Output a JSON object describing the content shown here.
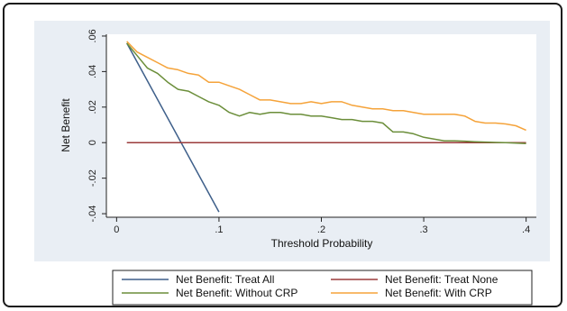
{
  "colors": {
    "outer_bg": "#ffffff",
    "plot_region_bg": "#e9eef4",
    "plot_bg": "#ffffff",
    "treat_all": "#3e5f8a",
    "treat_none": "#9b3b3b",
    "without_crp": "#6b8e3a",
    "with_crp": "#f5a33a"
  },
  "chart_data": {
    "type": "line",
    "title": "",
    "xlabel": "Threshold Probability",
    "ylabel": "Net Benefit",
    "xlim": [
      -0.01,
      0.41
    ],
    "ylim": [
      -0.042,
      0.061
    ],
    "x_ticks": [
      0,
      0.1,
      0.2,
      0.3,
      0.4
    ],
    "x_tick_labels": [
      "0",
      ".1",
      ".2",
      ".3",
      ".4"
    ],
    "y_ticks": [
      -0.04,
      -0.02,
      0,
      0.02,
      0.04,
      0.06
    ],
    "y_tick_labels": [
      "-.04",
      "-.02",
      "0",
      ".02",
      ".04",
      ".06"
    ],
    "grid": false,
    "legend_position": "bottom",
    "series": [
      {
        "name": "Net Benefit: Treat All",
        "color_key": "treat_all",
        "x": [
          0.01,
          0.1
        ],
        "y": [
          0.056,
          -0.039
        ]
      },
      {
        "name": "Net Benefit: Treat None",
        "color_key": "treat_none",
        "x": [
          0.01,
          0.4
        ],
        "y": [
          0,
          0
        ]
      },
      {
        "name": "Net Benefit: Without CRP",
        "color_key": "without_crp",
        "x": [
          0.01,
          0.02,
          0.03,
          0.04,
          0.05,
          0.06,
          0.07,
          0.08,
          0.09,
          0.1,
          0.11,
          0.12,
          0.13,
          0.14,
          0.15,
          0.16,
          0.17,
          0.18,
          0.19,
          0.2,
          0.21,
          0.22,
          0.23,
          0.24,
          0.25,
          0.26,
          0.27,
          0.28,
          0.29,
          0.3,
          0.31,
          0.32,
          0.33,
          0.34,
          0.35,
          0.36,
          0.37,
          0.38,
          0.39,
          0.4
        ],
        "y": [
          0.056,
          0.049,
          0.042,
          0.039,
          0.034,
          0.03,
          0.029,
          0.026,
          0.023,
          0.021,
          0.017,
          0.015,
          0.017,
          0.016,
          0.017,
          0.017,
          0.016,
          0.016,
          0.015,
          0.015,
          0.014,
          0.013,
          0.013,
          0.012,
          0.012,
          0.011,
          0.006,
          0.006,
          0.005,
          0.003,
          0.002,
          0.001,
          0.001,
          0.0008,
          0.0005,
          0.0003,
          0.0001,
          0,
          -0.0003,
          -0.0005
        ]
      },
      {
        "name": "Net Benefit: With CRP",
        "color_key": "with_crp",
        "x": [
          0.01,
          0.02,
          0.03,
          0.04,
          0.05,
          0.06,
          0.07,
          0.08,
          0.09,
          0.1,
          0.11,
          0.12,
          0.13,
          0.14,
          0.15,
          0.16,
          0.17,
          0.18,
          0.19,
          0.2,
          0.21,
          0.22,
          0.23,
          0.24,
          0.25,
          0.26,
          0.27,
          0.28,
          0.29,
          0.3,
          0.31,
          0.32,
          0.33,
          0.34,
          0.35,
          0.36,
          0.37,
          0.38,
          0.39,
          0.4
        ],
        "y": [
          0.057,
          0.051,
          0.048,
          0.045,
          0.042,
          0.041,
          0.039,
          0.038,
          0.034,
          0.034,
          0.032,
          0.03,
          0.027,
          0.024,
          0.024,
          0.023,
          0.022,
          0.022,
          0.023,
          0.022,
          0.023,
          0.023,
          0.021,
          0.02,
          0.019,
          0.019,
          0.018,
          0.018,
          0.017,
          0.016,
          0.016,
          0.016,
          0.016,
          0.015,
          0.012,
          0.011,
          0.011,
          0.0105,
          0.0095,
          0.007
        ]
      }
    ]
  }
}
